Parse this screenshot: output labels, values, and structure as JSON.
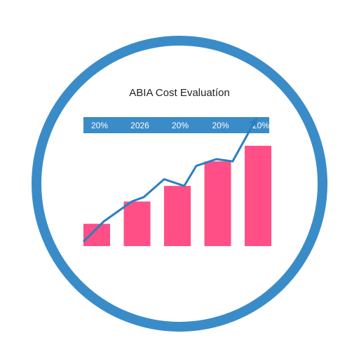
{
  "colors": {
    "ring": "#3a8cc9",
    "band": "#3a8cc9",
    "bar": "#ff4f86",
    "line": "#2a7fc2",
    "title": "#222222"
  },
  "chart_data": {
    "type": "bar",
    "title": "ABIA Cost Evaluatíon",
    "band_labels": [
      "20%",
      "2026",
      "20%",
      "20%",
      "20%"
    ],
    "categories": [
      "",
      "",
      "",
      "",
      ""
    ],
    "values": [
      10,
      20,
      27,
      38,
      45
    ],
    "ylim": [
      0,
      50
    ],
    "line_overlay": {
      "x": [
        0.0,
        0.5,
        1.2,
        1.5,
        2.0,
        2.5,
        2.8,
        3.3,
        3.7,
        4.3
      ],
      "y": [
        2,
        11,
        20,
        22,
        30,
        27,
        36,
        39,
        38,
        50
      ]
    },
    "grid": false,
    "legend": "none"
  }
}
